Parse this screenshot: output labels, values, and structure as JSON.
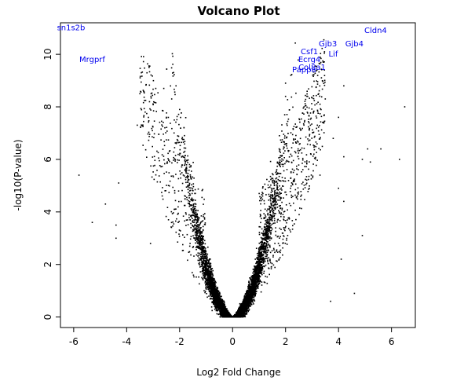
{
  "chart_data": {
    "type": "scatter",
    "title": "Volcano Plot",
    "xlabel": "Log2 Fold Change",
    "ylabel": "-log10(P-value)",
    "xlim": [
      -6.5,
      6.9
    ],
    "ylim": [
      -0.4,
      11.2
    ],
    "xticks": [
      -6,
      -4,
      -2,
      0,
      2,
      4,
      6
    ],
    "yticks": [
      0,
      2,
      4,
      6,
      8,
      10
    ],
    "grid": false,
    "point_color": "#000000",
    "label_color": "#0000ee",
    "outliers": [
      {
        "x": -5.8,
        "y": 5.4
      },
      {
        "x": -5.3,
        "y": 3.6
      },
      {
        "x": -4.4,
        "y": 3.0
      },
      {
        "x": -4.3,
        "y": 5.1
      },
      {
        "x": -4.4,
        "y": 3.5
      },
      {
        "x": -3.6,
        "y": 7.3
      },
      {
        "x": -3.5,
        "y": 8.5
      },
      {
        "x": -3.3,
        "y": 7.8
      },
      {
        "x": -2.9,
        "y": 8.7
      },
      {
        "x": -2.6,
        "y": 8.7
      },
      {
        "x": -2.3,
        "y": 8.3
      },
      {
        "x": -2.5,
        "y": 7.6
      },
      {
        "x": -2.0,
        "y": 7.9
      },
      {
        "x": -2.2,
        "y": 7.5
      },
      {
        "x": -4.8,
        "y": 4.3
      },
      {
        "x": -3.1,
        "y": 2.8
      },
      {
        "x": 2.0,
        "y": 8.9
      },
      {
        "x": 2.2,
        "y": 9.2
      },
      {
        "x": 2.0,
        "y": 8.4
      },
      {
        "x": 3.5,
        "y": 8.3
      },
      {
        "x": 4.2,
        "y": 8.8
      },
      {
        "x": 4.0,
        "y": 7.6
      },
      {
        "x": 3.8,
        "y": 6.8
      },
      {
        "x": 3.3,
        "y": 8.1
      },
      {
        "x": 4.2,
        "y": 6.1
      },
      {
        "x": 4.9,
        "y": 6.0
      },
      {
        "x": 5.1,
        "y": 6.4
      },
      {
        "x": 5.2,
        "y": 5.9
      },
      {
        "x": 5.6,
        "y": 6.4
      },
      {
        "x": 6.3,
        "y": 6.0
      },
      {
        "x": 6.5,
        "y": 8.0
      },
      {
        "x": 4.9,
        "y": 3.1
      },
      {
        "x": 4.6,
        "y": 0.9
      },
      {
        "x": 3.7,
        "y": 0.6
      },
      {
        "x": 4.1,
        "y": 2.2
      },
      {
        "x": 4.0,
        "y": 4.9
      },
      {
        "x": 3.3,
        "y": 5.4
      },
      {
        "x": 4.2,
        "y": 4.4
      }
    ],
    "labels": [
      {
        "text": "sn1s2b",
        "x": -6.1,
        "y": 11.0
      },
      {
        "text": "Mrgprf",
        "x": -5.3,
        "y": 9.8
      },
      {
        "text": "Cldn4",
        "x": 5.4,
        "y": 10.9
      },
      {
        "text": "Gjb4",
        "x": 4.6,
        "y": 10.4
      },
      {
        "text": "Gjb3",
        "x": 3.6,
        "y": 10.4
      },
      {
        "text": "Csf1",
        "x": 2.9,
        "y": 10.1
      },
      {
        "text": "Lif",
        "x": 3.8,
        "y": 10.0
      },
      {
        "text": "Ecrg4",
        "x": 2.9,
        "y": 9.8
      },
      {
        "text": "Col8a1",
        "x": 3.0,
        "y": 9.5
      },
      {
        "text": "Pappa",
        "x": 2.7,
        "y": 9.4
      }
    ]
  }
}
